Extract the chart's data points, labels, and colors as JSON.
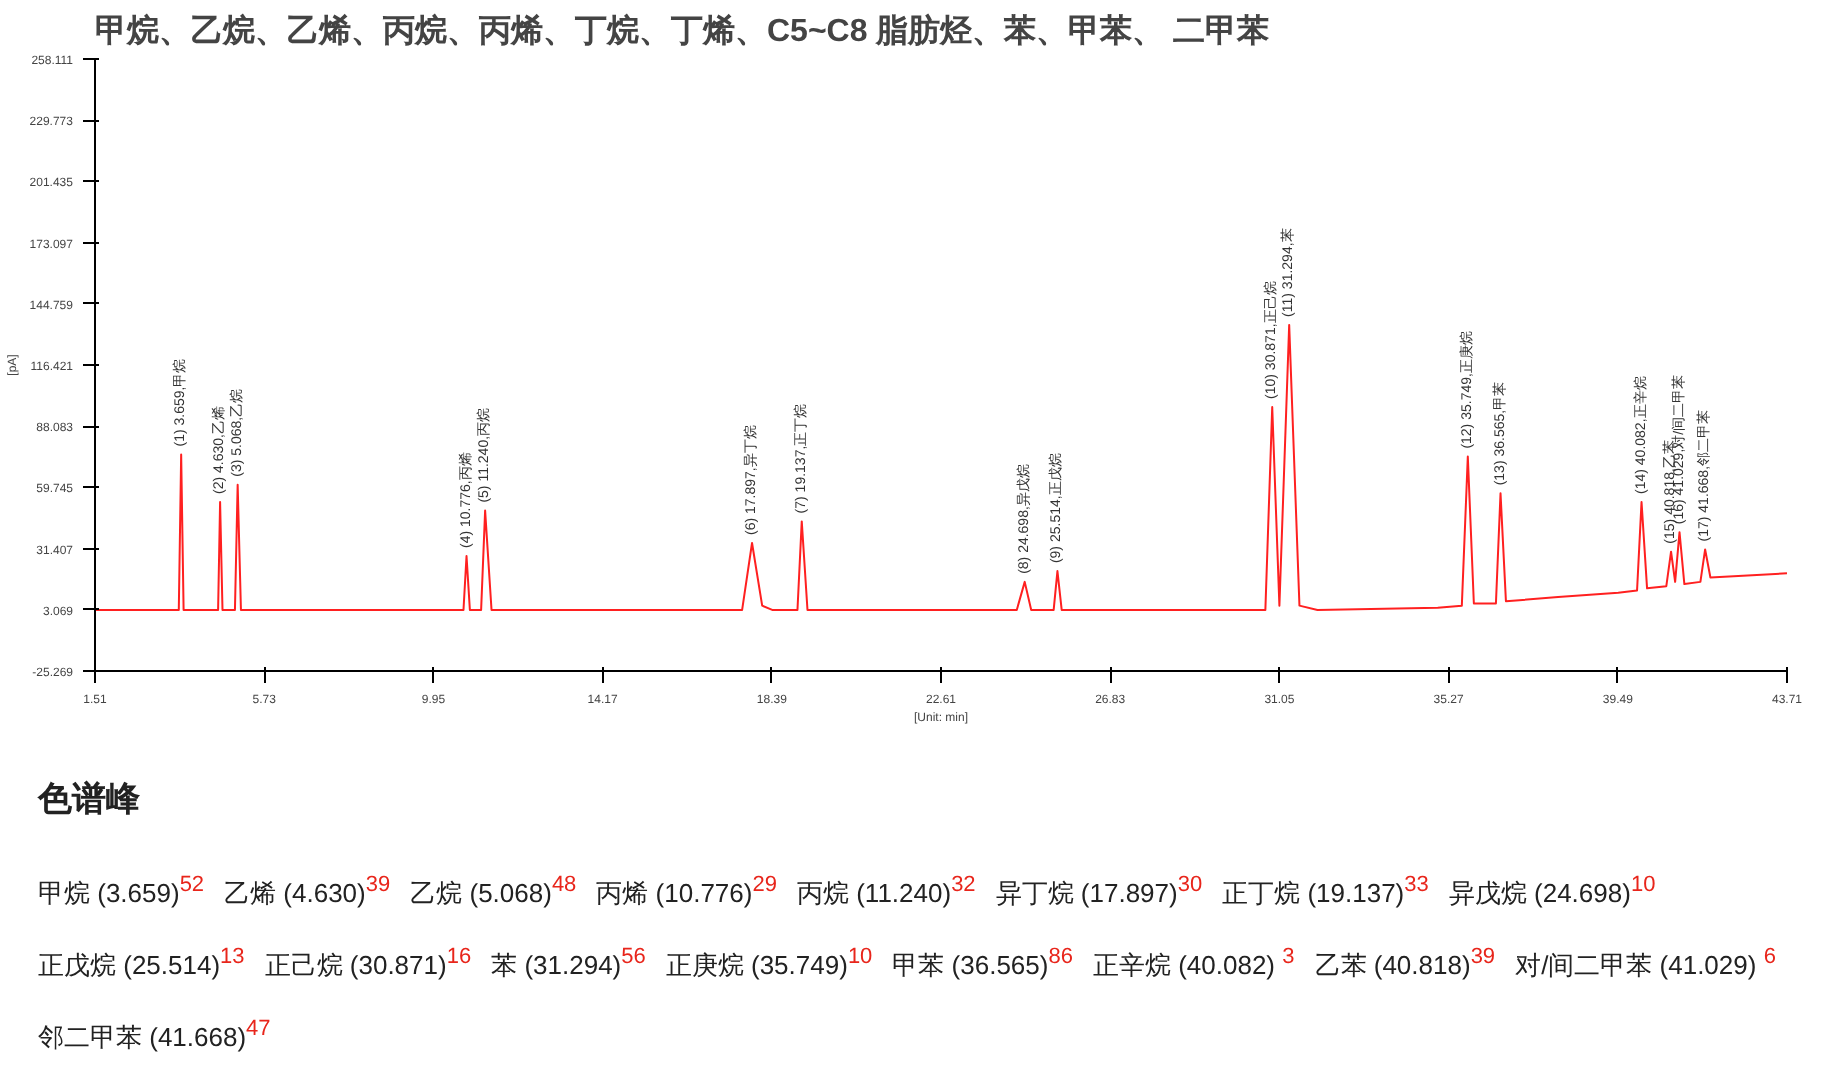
{
  "chart_data": {
    "type": "line",
    "title": "甲烷、乙烷、乙烯、丙烷、丙烯、丁烷、丁烯、C5~C8 脂肪烃、苯、甲苯、 二甲苯",
    "xlabel": "[Unit: min]",
    "ylabel": "[pA]",
    "xlim": [
      1.51,
      43.71
    ],
    "xticks": [
      1.51,
      5.73,
      9.95,
      14.17,
      18.39,
      22.61,
      26.83,
      31.05,
      35.27,
      39.49,
      43.71
    ],
    "ylim": [
      -25.269,
      258.111
    ],
    "yticks": [
      -25.269,
      3.069,
      31.407,
      59.745,
      88.083,
      116.421,
      144.759,
      173.097,
      201.435,
      229.773,
      258.111
    ],
    "grid": false,
    "marker": "none",
    "line_style": "solid",
    "series": [
      {
        "color": "#ff2020",
        "x": [
          1.51,
          3.6,
          3.659,
          3.72,
          4.58,
          4.63,
          4.69,
          5.0,
          5.068,
          5.15,
          10.7,
          10.776,
          10.86,
          11.14,
          11.24,
          11.4,
          17.65,
          17.897,
          18.15,
          18.4,
          19.03,
          19.137,
          19.28,
          24.5,
          24.698,
          24.86,
          25.42,
          25.514,
          25.62,
          30.7,
          30.871,
          31.05,
          31.294,
          31.55,
          32.0,
          35.0,
          35.6,
          35.749,
          35.9,
          36.45,
          36.565,
          36.7,
          38.0,
          39.5,
          39.97,
          40.082,
          40.22,
          40.7,
          40.818,
          40.92,
          41.029,
          41.15,
          41.55,
          41.668,
          41.8,
          43.71
        ],
        "values": [
          3,
          3,
          75,
          3,
          3,
          53,
          3,
          3,
          61,
          3,
          3,
          28,
          3,
          3,
          49,
          3,
          3,
          34,
          5,
          3,
          3,
          44,
          3,
          3,
          16,
          3,
          3,
          21,
          3,
          3,
          97,
          5,
          135,
          5,
          3,
          4,
          5,
          74,
          6,
          6,
          57,
          7,
          9,
          11,
          12,
          53,
          13,
          14,
          30,
          16,
          39,
          15,
          16,
          31,
          18,
          20
        ]
      }
    ],
    "annotations": [
      {
        "text": "(1) 3.659,甲烷",
        "x": 3.659,
        "y": 75
      },
      {
        "text": "(2) 4.630,乙烯",
        "x": 4.63,
        "y": 53
      },
      {
        "text": "(3) 5.068,乙烷",
        "x": 5.068,
        "y": 61
      },
      {
        "text": "(4) 10.776,丙烯",
        "x": 10.776,
        "y": 28
      },
      {
        "text": "(5) 11.240,丙烷",
        "x": 11.24,
        "y": 49
      },
      {
        "text": "(6) 17.897,异丁烷",
        "x": 17.897,
        "y": 34
      },
      {
        "text": "(7) 19.137,正丁烷",
        "x": 19.137,
        "y": 44
      },
      {
        "text": "(8) 24.698,异戊烷",
        "x": 24.698,
        "y": 16
      },
      {
        "text": "(9) 25.514,正戊烷",
        "x": 25.514,
        "y": 21
      },
      {
        "text": "(10) 30.871,正己烷",
        "x": 30.871,
        "y": 97
      },
      {
        "text": "(11) 31.294,苯",
        "x": 31.294,
        "y": 135
      },
      {
        "text": "(12) 35.749,正庚烷",
        "x": 35.749,
        "y": 74
      },
      {
        "text": "(13) 36.565,甲苯",
        "x": 36.565,
        "y": 57
      },
      {
        "text": "(14) 40.082,正辛烷",
        "x": 40.082,
        "y": 53
      },
      {
        "text": "(15) 40.818,乙苯",
        "x": 40.818,
        "y": 30
      },
      {
        "text": "(16) 41.029,对/间二甲苯",
        "x": 41.029,
        "y": 39
      },
      {
        "text": "(17) 41.668,邻二甲苯",
        "x": 41.668,
        "y": 31
      },
      "色谱峰",
      "甲烷 (3.659)$^{52}$",
      "乙烯 (4.630)$^{39}$",
      "乙烷 (5.068)$^{48}$",
      "丙烯 (10.776)$^{29}$",
      "丙烷 (11.240)$^{32}$",
      "异丁烷 (17.897)$^{30}$",
      "正丁烷 (19.137)$^{33}$",
      "异戊烷 (24.698)$^{10}$",
      "正戊烷 (25.514)$^{13}$",
      "正己烷 (30.871)$^{16}$",
      "苯 (31.294)$^{56}$",
      "正庚烷 (35.749)$^{10}$",
      "甲苯 (36.565)$^{86}$",
      "正辛烷 (40.082) $^{3}$",
      "乙苯 (40.818)$^{39}$",
      "对/间二甲苯 (41.029) $^{6}$",
      "邻二甲苯 (41.668)$^{47}$"
    ]
  }
}
